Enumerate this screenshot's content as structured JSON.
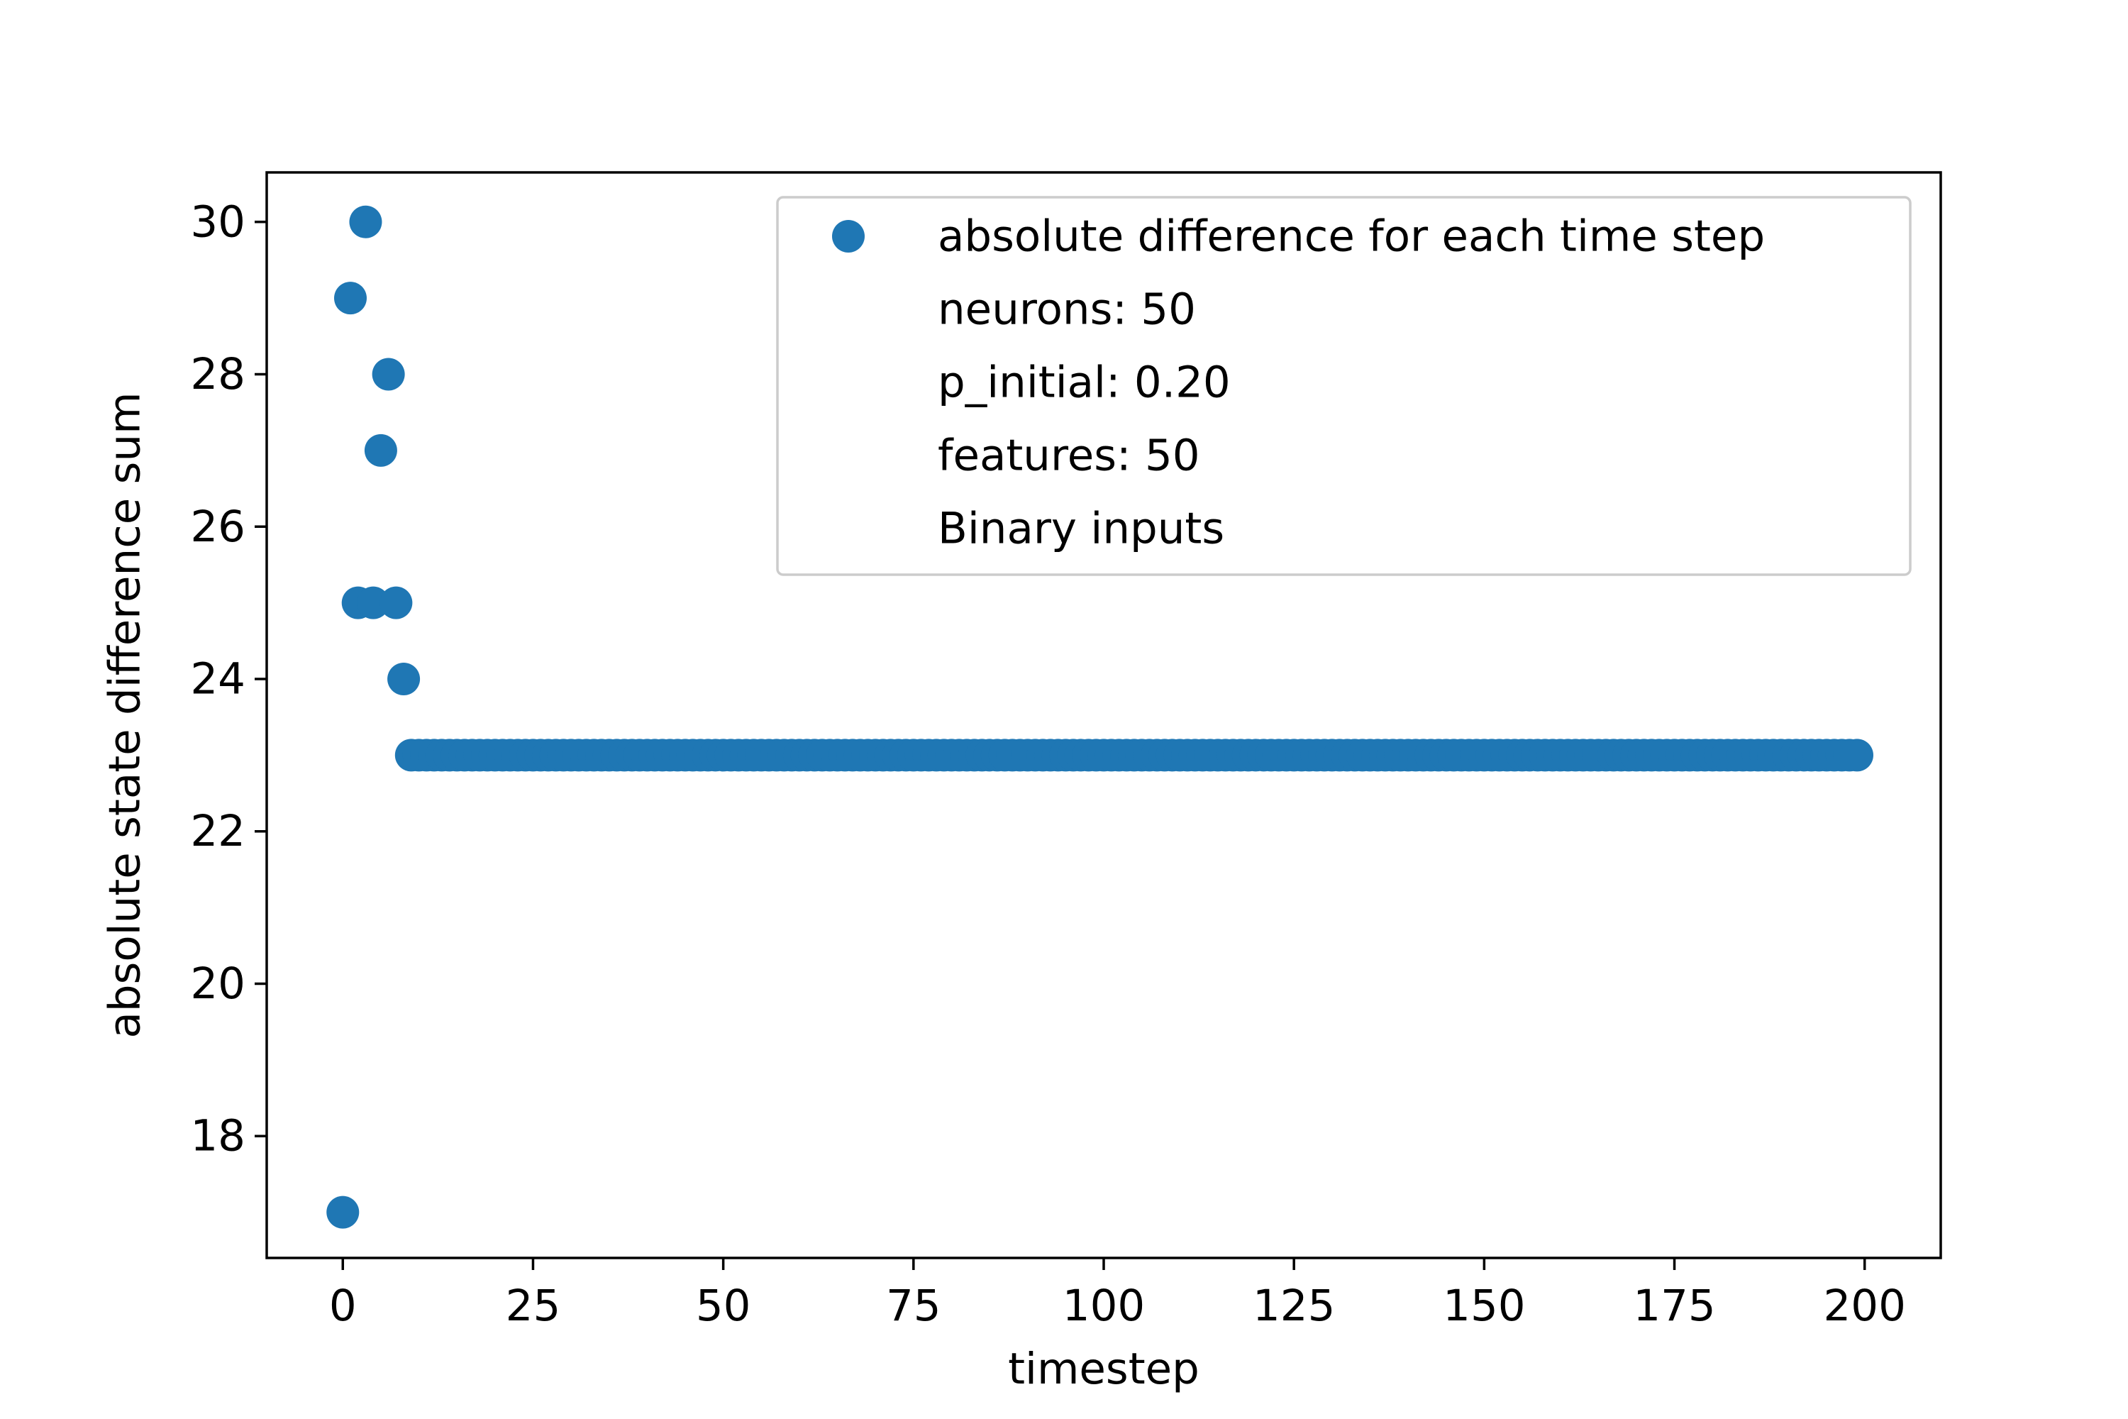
{
  "chart_data": {
    "type": "scatter",
    "title": "",
    "xlabel": "timestep",
    "ylabel": "absolute state difference sum",
    "xlim": [
      -10,
      210
    ],
    "ylim": [
      16.4,
      30.65
    ],
    "xticks": [
      0,
      25,
      50,
      75,
      100,
      125,
      150,
      175,
      200
    ],
    "yticks": [
      18,
      20,
      22,
      24,
      26,
      28,
      30
    ],
    "grid": false,
    "legend_position": "top-right",
    "marker_color": "#1f77b4",
    "series": [
      {
        "name": "absolute difference for each time step",
        "x": [
          0,
          1,
          2,
          3,
          4,
          5,
          6,
          7,
          8,
          9,
          10,
          11,
          12,
          13,
          14,
          15,
          16,
          17,
          18,
          19,
          20,
          21,
          22,
          23,
          24,
          25,
          26,
          27,
          28,
          29,
          30,
          31,
          32,
          33,
          34,
          35,
          36,
          37,
          38,
          39,
          40,
          41,
          42,
          43,
          44,
          45,
          46,
          47,
          48,
          49,
          50,
          51,
          52,
          53,
          54,
          55,
          56,
          57,
          58,
          59,
          60,
          61,
          62,
          63,
          64,
          65,
          66,
          67,
          68,
          69,
          70,
          71,
          72,
          73,
          74,
          75,
          76,
          77,
          78,
          79,
          80,
          81,
          82,
          83,
          84,
          85,
          86,
          87,
          88,
          89,
          90,
          91,
          92,
          93,
          94,
          95,
          96,
          97,
          98,
          99,
          100,
          101,
          102,
          103,
          104,
          105,
          106,
          107,
          108,
          109,
          110,
          111,
          112,
          113,
          114,
          115,
          116,
          117,
          118,
          119,
          120,
          121,
          122,
          123,
          124,
          125,
          126,
          127,
          128,
          129,
          130,
          131,
          132,
          133,
          134,
          135,
          136,
          137,
          138,
          139,
          140,
          141,
          142,
          143,
          144,
          145,
          146,
          147,
          148,
          149,
          150,
          151,
          152,
          153,
          154,
          155,
          156,
          157,
          158,
          159,
          160,
          161,
          162,
          163,
          164,
          165,
          166,
          167,
          168,
          169,
          170,
          171,
          172,
          173,
          174,
          175,
          176,
          177,
          178,
          179,
          180,
          181,
          182,
          183,
          184,
          185,
          186,
          187,
          188,
          189,
          190,
          191,
          192,
          193,
          194,
          195,
          196,
          197,
          198,
          199
        ],
        "y": [
          17,
          29,
          25,
          30,
          25,
          27,
          28,
          25,
          24,
          23,
          23,
          23,
          23,
          23,
          23,
          23,
          23,
          23,
          23,
          23,
          23,
          23,
          23,
          23,
          23,
          23,
          23,
          23,
          23,
          23,
          23,
          23,
          23,
          23,
          23,
          23,
          23,
          23,
          23,
          23,
          23,
          23,
          23,
          23,
          23,
          23,
          23,
          23,
          23,
          23,
          23,
          23,
          23,
          23,
          23,
          23,
          23,
          23,
          23,
          23,
          23,
          23,
          23,
          23,
          23,
          23,
          23,
          23,
          23,
          23,
          23,
          23,
          23,
          23,
          23,
          23,
          23,
          23,
          23,
          23,
          23,
          23,
          23,
          23,
          23,
          23,
          23,
          23,
          23,
          23,
          23,
          23,
          23,
          23,
          23,
          23,
          23,
          23,
          23,
          23,
          23,
          23,
          23,
          23,
          23,
          23,
          23,
          23,
          23,
          23,
          23,
          23,
          23,
          23,
          23,
          23,
          23,
          23,
          23,
          23,
          23,
          23,
          23,
          23,
          23,
          23,
          23,
          23,
          23,
          23,
          23,
          23,
          23,
          23,
          23,
          23,
          23,
          23,
          23,
          23,
          23,
          23,
          23,
          23,
          23,
          23,
          23,
          23,
          23,
          23,
          23,
          23,
          23,
          23,
          23,
          23,
          23,
          23,
          23,
          23,
          23,
          23,
          23,
          23,
          23,
          23,
          23,
          23,
          23,
          23,
          23,
          23,
          23,
          23,
          23,
          23,
          23,
          23,
          23,
          23,
          23,
          23,
          23,
          23,
          23,
          23,
          23,
          23,
          23,
          23,
          23,
          23,
          23,
          23,
          23,
          23,
          23,
          23,
          23,
          23
        ]
      }
    ],
    "legend_extra_lines": [
      "neurons: 50",
      "p_initial: 0.20",
      "features: 50",
      "Binary inputs"
    ]
  }
}
